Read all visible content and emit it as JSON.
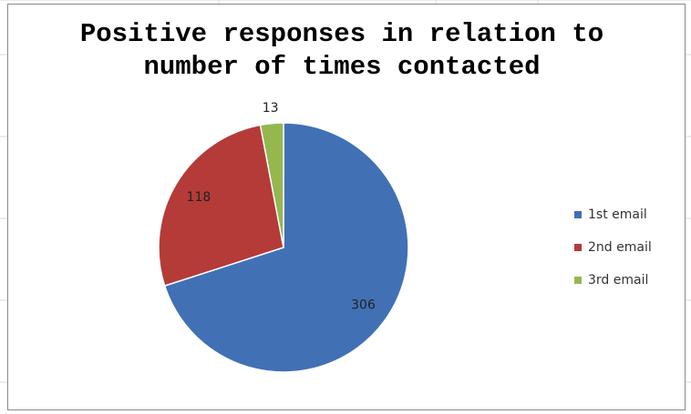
{
  "chart_data": {
    "type": "pie",
    "title": "Positive responses in relation to number of times contacted",
    "categories": [
      "1st email",
      "2nd email",
      "3rd email"
    ],
    "values": [
      306,
      118,
      13
    ],
    "colors": [
      "#4170b5",
      "#b43b38",
      "#94b84e"
    ],
    "legend": "right"
  }
}
